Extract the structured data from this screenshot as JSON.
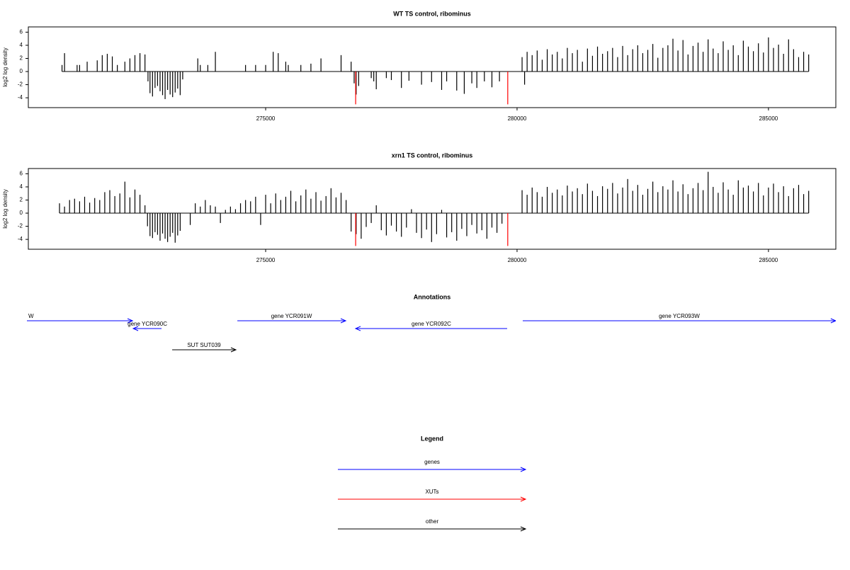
{
  "chart_data": [
    {
      "type": "bar",
      "title": "WT TS control, ribominus",
      "ylabel": "log2 log density",
      "color": "#000000",
      "xlim": [
        270280,
        286340
      ],
      "ylim": [
        -5.5,
        6.8
      ],
      "xticks": [
        275000,
        280000,
        285000
      ],
      "yticks": [
        -4,
        -2,
        0,
        2,
        4,
        6
      ],
      "x": [
        270950,
        271000,
        271250,
        271300,
        271450,
        271650,
        271750,
        271850,
        271950,
        272050,
        272200,
        272300,
        272400,
        272500,
        272600,
        272660,
        272700,
        272750,
        272800,
        272850,
        272900,
        272950,
        273000,
        273050,
        273100,
        273150,
        273200,
        273250,
        273300,
        273350,
        273650,
        273700,
        273850,
        274000,
        274600,
        274800,
        275000,
        275150,
        275250,
        275400,
        275450,
        275700,
        275900,
        276100,
        276500,
        276700,
        276760,
        276800,
        276850,
        277100,
        277150,
        277200,
        277400,
        277500,
        277700,
        277850,
        278100,
        278300,
        278500,
        278600,
        278800,
        278950,
        279100,
        279200,
        279350,
        279500,
        279650,
        280150,
        280100,
        280200,
        280300,
        280400,
        280500,
        280600,
        280700,
        280800,
        280900,
        281000,
        281100,
        281200,
        281300,
        281400,
        281500,
        281600,
        281700,
        281800,
        281900,
        282000,
        282100,
        282200,
        282300,
        282400,
        282500,
        282600,
        282700,
        282800,
        282900,
        283000,
        283100,
        283200,
        283300,
        283400,
        283500,
        283600,
        283700,
        283800,
        283900,
        284000,
        284100,
        284200,
        284300,
        284400,
        284500,
        284600,
        284700,
        284800,
        284900,
        285000,
        285100,
        285200,
        285300,
        285400,
        285500,
        285600,
        285700,
        285800
      ],
      "values": [
        1,
        2.8,
        1,
        1,
        1.5,
        1.7,
        2.5,
        2.7,
        2.3,
        1,
        1.5,
        2,
        2.5,
        2.8,
        2.6,
        -1.5,
        -3.3,
        -3.8,
        -2.5,
        -2.2,
        -3,
        -3.6,
        -4.2,
        -2.8,
        -3.5,
        -3.9,
        -3.2,
        -2.6,
        -3.6,
        -1.2,
        2,
        1,
        1,
        3,
        1,
        1,
        1,
        3,
        2.8,
        1.5,
        1,
        1,
        1.2,
        2,
        2.5,
        1.5,
        -1.8,
        -3.5,
        -2.2,
        -1,
        -1.5,
        -2.7,
        -1,
        -1.3,
        -2.5,
        -1.4,
        -2,
        -1.6,
        -2.8,
        -1.5,
        -2.9,
        -3.4,
        -1.8,
        -2.5,
        -1.5,
        -2.4,
        -1.5,
        -2,
        2.2,
        3,
        2.5,
        3.2,
        1.8,
        3.4,
        2.6,
        3,
        2,
        3.6,
        2.8,
        3.3,
        1.5,
        3.5,
        2.4,
        3.8,
        2.7,
        3.1,
        3.6,
        2.2,
        3.9,
        2.5,
        3.4,
        4,
        2.8,
        3.3,
        4.2,
        2.1,
        3.6,
        4,
        5,
        3.2,
        4.8,
        2.6,
        3.9,
        4.4,
        3,
        4.9,
        3.5,
        2.8,
        4.6,
        3.3,
        4,
        2.5,
        4.7,
        3.8,
        3.1,
        4.3,
        2.9,
        5.2,
        3.6,
        4.1,
        2.7,
        4.9,
        3.4,
        2.2,
        3,
        2.6
      ],
      "highlight": {
        "color": "#ff0000",
        "x": [
          276790,
          279815
        ],
        "values": [
          -5,
          -5
        ]
      }
    },
    {
      "type": "bar",
      "title": "xrn1 TS control, ribominus",
      "ylabel": "log2 log density",
      "color": "#000000",
      "xlim": [
        270280,
        286340
      ],
      "ylim": [
        -5.5,
        6.8
      ],
      "xticks": [
        275000,
        280000,
        285000
      ],
      "yticks": [
        -4,
        -2,
        0,
        2,
        4,
        6
      ],
      "x": [
        270900,
        271000,
        271100,
        271200,
        271300,
        271400,
        271500,
        271600,
        271700,
        271800,
        271900,
        272000,
        272100,
        272200,
        272300,
        272400,
        272500,
        272600,
        272650,
        272700,
        272750,
        272800,
        272850,
        272900,
        272950,
        273000,
        273050,
        273100,
        273150,
        273200,
        273250,
        273300,
        273500,
        273600,
        273700,
        273800,
        273900,
        274000,
        274100,
        274200,
        274300,
        274400,
        274500,
        274600,
        274700,
        274800,
        274900,
        275000,
        275100,
        275200,
        275300,
        275400,
        275500,
        275600,
        275700,
        275800,
        275900,
        276000,
        276100,
        276200,
        276300,
        276400,
        276500,
        276600,
        276700,
        276800,
        276900,
        277000,
        277100,
        277200,
        277300,
        277400,
        277500,
        277600,
        277700,
        277800,
        277900,
        278000,
        278100,
        278200,
        278300,
        278400,
        278500,
        278600,
        278700,
        278800,
        278900,
        279000,
        279100,
        279200,
        279300,
        279400,
        279500,
        279600,
        279700,
        280100,
        280200,
        280300,
        280400,
        280500,
        280600,
        280700,
        280800,
        280900,
        281000,
        281100,
        281200,
        281300,
        281400,
        281500,
        281600,
        281700,
        281800,
        281900,
        282000,
        282100,
        282200,
        282300,
        282400,
        282500,
        282600,
        282700,
        282800,
        282900,
        283000,
        283100,
        283200,
        283300,
        283400,
        283500,
        283600,
        283700,
        283800,
        283900,
        284000,
        284100,
        284200,
        284300,
        284400,
        284500,
        284600,
        284700,
        284800,
        284900,
        285000,
        285100,
        285200,
        285300,
        285400,
        285500,
        285600,
        285700,
        285800
      ],
      "values": [
        1.5,
        1,
        2,
        2.2,
        1.8,
        2.5,
        1.6,
        2.3,
        2,
        3.2,
        3.5,
        2.6,
        3,
        4.8,
        2.4,
        3.6,
        2.8,
        1.2,
        -2,
        -3.5,
        -3.8,
        -2.9,
        -3.3,
        -4.2,
        -3.1,
        -3.9,
        -4.4,
        -3.6,
        -3,
        -4.5,
        -3.4,
        -2.7,
        -1.8,
        1.5,
        1,
        2,
        1.2,
        1,
        -1.5,
        0.5,
        1,
        0.6,
        1.5,
        2,
        1.8,
        2.5,
        -1.8,
        2.8,
        1.5,
        3,
        2,
        2.5,
        3.4,
        1.8,
        2.7,
        3.6,
        2.2,
        3.2,
        1.9,
        2.6,
        3.8,
        2.4,
        3.1,
        2,
        -2.8,
        -3.2,
        -3.9,
        -2.1,
        -1.5,
        1.2,
        -2.6,
        -3.4,
        -1.9,
        -2.8,
        -3.6,
        -2.2,
        0.6,
        -3,
        -3.8,
        -2.5,
        -4.4,
        -3.2,
        0.5,
        -3.7,
        -2.9,
        -4.2,
        -2.4,
        -3.5,
        -1.8,
        -3.1,
        -2.6,
        -3.9,
        -2.2,
        -3,
        -1.6,
        3.5,
        2.8,
        3.9,
        3.2,
        2.5,
        4,
        3.1,
        3.6,
        2.7,
        4.2,
        3.3,
        3.8,
        2.9,
        4.5,
        3.4,
        2.6,
        4.1,
        3.7,
        4.6,
        3,
        3.9,
        5.2,
        3.4,
        4.3,
        2.8,
        3.7,
        4.8,
        3.2,
        4.1,
        3.6,
        5,
        3.3,
        4.4,
        2.9,
        3.8,
        4.6,
        3.5,
        6.3,
        4,
        3.1,
        4.7,
        3.6,
        2.8,
        5,
        3.9,
        4.2,
        3.3,
        4.6,
        2.7,
        3.9,
        4.5,
        3.2,
        4.1,
        2.6,
        3.8,
        4.3,
        2.9,
        3.4
      ],
      "highlight": {
        "color": "#ff0000",
        "x": [
          276790,
          279815
        ],
        "values": [
          -5,
          -5
        ]
      }
    }
  ],
  "annotations": {
    "title": "Annotations",
    "features": [
      {
        "label": "W",
        "start": 267370,
        "end": 272352,
        "color": "#0000ff"
      },
      {
        "label": "gene YCR090C",
        "start": 272930,
        "end": 272366,
        "color": "#0000ff"
      },
      {
        "label": "gene YCR091W",
        "start": 274437,
        "end": 276592,
        "color": "#0000ff"
      },
      {
        "label": "gene YCR092C",
        "start": 279803,
        "end": 276789,
        "color": "#0000ff"
      },
      {
        "label": "gene YCR093W",
        "start": 280113,
        "end": 286338,
        "color": "#0000ff"
      },
      {
        "label": "SUT SUT039",
        "start": 273141,
        "end": 274408,
        "color": "#000000"
      }
    ]
  },
  "legend": {
    "title": "Legend",
    "items": [
      {
        "label": "genes",
        "color": "#0000ff"
      },
      {
        "label": "XUTs",
        "color": "#ff0000"
      },
      {
        "label": "other",
        "color": "#000000"
      }
    ]
  }
}
